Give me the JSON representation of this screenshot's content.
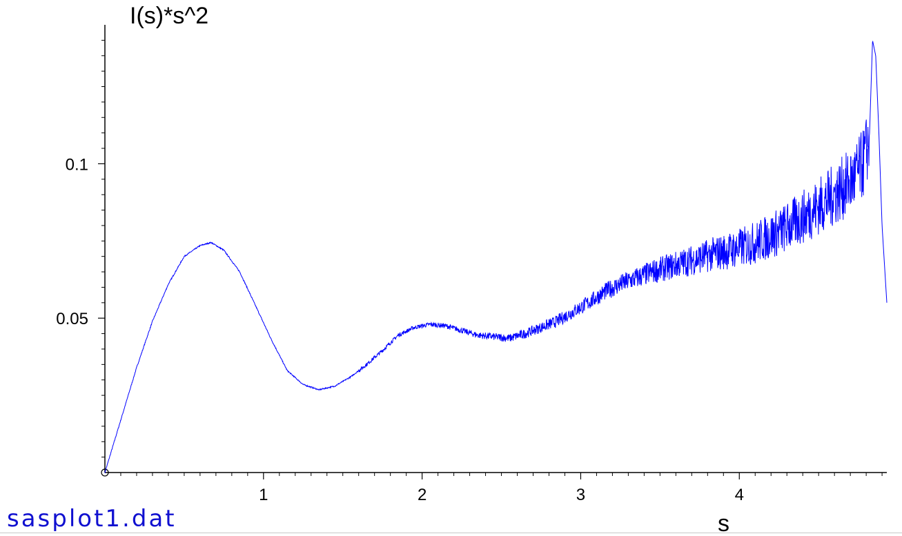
{
  "file_label": "sasplot1.dat",
  "chart_data": {
    "type": "line",
    "ylabel": "I(s)*s^2",
    "xlabel": "s",
    "xlim": [
      0,
      4.93
    ],
    "ylim": [
      0,
      0.145
    ],
    "x_ticks": [
      1,
      2,
      3,
      4
    ],
    "x_tick_labels": [
      "1",
      "2",
      "3",
      "4"
    ],
    "y_ticks": [
      0.05,
      0.1
    ],
    "y_tick_labels": [
      "0.05",
      "0.1"
    ],
    "grid": false,
    "legend": "none",
    "series": [
      {
        "color": "#0000ff",
        "noisy": true,
        "x": [
          0.0,
          0.1,
          0.2,
          0.3,
          0.4,
          0.5,
          0.6,
          0.67,
          0.75,
          0.85,
          0.95,
          1.05,
          1.15,
          1.25,
          1.35,
          1.45,
          1.55,
          1.65,
          1.75,
          1.85,
          1.95,
          2.05,
          2.15,
          2.25,
          2.35,
          2.45,
          2.55,
          2.65,
          2.75,
          2.85,
          2.95,
          3.05,
          3.15,
          3.25,
          3.35,
          3.45,
          3.55,
          3.65,
          3.75,
          3.85,
          3.95,
          4.05,
          4.15,
          4.25,
          4.35,
          4.45,
          4.55,
          4.65,
          4.72,
          4.78,
          4.82,
          4.84,
          4.86,
          4.88,
          4.9,
          4.93
        ],
        "y": [
          0.0,
          0.017,
          0.034,
          0.049,
          0.061,
          0.07,
          0.0735,
          0.0745,
          0.072,
          0.065,
          0.054,
          0.043,
          0.033,
          0.0285,
          0.0268,
          0.028,
          0.031,
          0.035,
          0.0395,
          0.0445,
          0.047,
          0.048,
          0.0475,
          0.046,
          0.0445,
          0.044,
          0.0435,
          0.045,
          0.047,
          0.049,
          0.052,
          0.055,
          0.0585,
          0.061,
          0.063,
          0.065,
          0.0665,
          0.068,
          0.0695,
          0.071,
          0.072,
          0.0735,
          0.0755,
          0.078,
          0.081,
          0.0845,
          0.088,
          0.092,
          0.095,
          0.1,
          0.108,
          0.14,
          0.135,
          0.11,
          0.08,
          0.055
        ]
      }
    ]
  }
}
